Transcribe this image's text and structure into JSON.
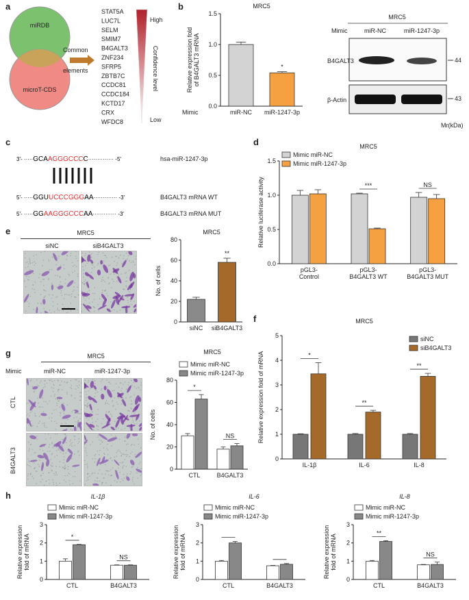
{
  "panels": {
    "a": "a",
    "b": "b",
    "c": "c",
    "d": "d",
    "e": "e",
    "f": "f",
    "g": "g",
    "h": "h"
  },
  "panel_a": {
    "circle_top": "miRDB",
    "circle_bottom": "microT-CDS",
    "arrow_label_1": "Common",
    "arrow_label_2": "elements",
    "genes": [
      "STAT5A",
      "LUC7L",
      "SELM",
      "SMIM7",
      "B4GALT3",
      "ZNF234",
      "SFRP5",
      "ZBTB7C",
      "CCDC81",
      "CCDC184",
      "KCTD17",
      "CRX",
      "WFDC8"
    ],
    "highlight_gene": "B4GALT3",
    "highlight_color": "#e03030",
    "scale_high": "High",
    "scale_mid": "Confidence level",
    "scale_low": "Low",
    "circle_top_color": "#7cc26e",
    "circle_bottom_color": "#f08a84"
  },
  "panel_b_blot": {
    "cell": "MRC5",
    "mimic_label": "Mimic",
    "lanes": [
      "miR-NC",
      "miR-1247-3p"
    ],
    "bands": [
      "B4GALT3",
      "β-Actin"
    ],
    "sizes": [
      "44",
      "43"
    ],
    "mr_label": "Mr(kDa)"
  },
  "panel_c": {
    "rows": [
      {
        "prefix": "3'-",
        "dots": "·····",
        "seq_black1": "GCA",
        "seq_red": "AGGGCCC",
        "seq_black2": "C",
        "tail_dots": "··············",
        "suffix": "-5'",
        "label": "hsa-miR-1247-3p"
      },
      {
        "prefix": "5'-",
        "dots": "·····",
        "seq_black1": "GGU",
        "seq_red": "UCCCGGG",
        "seq_black2": "AA",
        "tail_dots": "·············",
        "suffix": "-3'",
        "label": "B4GALT3 mRNA WT"
      },
      {
        "prefix": "5'-",
        "dots": "·····",
        "seq_black1": "GG",
        "seq_red": "AAGGGCCC",
        "seq_black2": "AA",
        "tail_dots": "·············",
        "suffix": "-3'",
        "label": "B4GALT3 mRNA MUT"
      }
    ]
  },
  "panel_e_images": {
    "cell": "MRC5",
    "lanes": [
      "siNC",
      "siB4GALT3"
    ]
  },
  "panel_g_images": {
    "cell": "MRC5",
    "mimic_label": "Mimic",
    "lanes": [
      "miR-NC",
      "miR-1247-3p"
    ],
    "rows": [
      "CTL",
      "B4GALT3"
    ]
  },
  "chart_data": [
    {
      "id": "b",
      "type": "bar",
      "title": "MRC5",
      "ylabel": "Relative expression fold of B4GALT3 mRNA",
      "xlabel_prefix": "Mimic",
      "categories": [
        "miR-NC",
        "miR-1247-3p"
      ],
      "values": [
        1.0,
        0.54
      ],
      "errors": [
        0.04,
        0.02
      ],
      "colors": [
        "#d3d3d3",
        "#f5a142"
      ],
      "yticks": [
        "0.0",
        "0.5",
        "1.0",
        "1.5"
      ],
      "ylim": [
        0,
        1.5
      ],
      "sig": [
        {
          "x": 1,
          "y": 0.6,
          "text": "*"
        }
      ]
    },
    {
      "id": "d",
      "type": "bar",
      "title": "MRC5",
      "ylabel": "Relative luciferase activity",
      "categories": [
        "pGL3-Control",
        "pGL3-B4GALT3 WT",
        "pGL3-B4GALT3 MUT"
      ],
      "series": [
        {
          "name": "Mimic miR-NC",
          "values": [
            1.0,
            1.02,
            0.97
          ],
          "errors": [
            0.07,
            0.01,
            0.07
          ],
          "color": "#d3d3d3"
        },
        {
          "name": "Mimic miR-1247-3p",
          "values": [
            1.02,
            0.51,
            0.95
          ],
          "errors": [
            0.06,
            0.01,
            0.06
          ],
          "color": "#f5a142"
        }
      ],
      "yticks": [
        "0.0",
        "0.5",
        "1.0",
        "1.5"
      ],
      "ylim": [
        0,
        1.5
      ],
      "sig": [
        {
          "group": 1,
          "text": "***"
        },
        {
          "group": 2,
          "text": "NS"
        }
      ]
    },
    {
      "id": "e",
      "type": "bar",
      "title": "MRC5",
      "ylabel": "No. of cells",
      "categories": [
        "siNC",
        "siB4GALT3"
      ],
      "values": [
        22,
        58
      ],
      "errors": [
        2,
        4
      ],
      "colors": [
        "#8a8a8a",
        "#a56a2a"
      ],
      "yticks": [
        "0",
        "20",
        "40",
        "60",
        "80"
      ],
      "ylim": [
        0,
        80
      ],
      "sig": [
        {
          "x": 1,
          "text": "**"
        }
      ]
    },
    {
      "id": "f",
      "type": "bar",
      "title": "MRC5",
      "ylabel": "Relative expression fold of mRNA",
      "categories": [
        "IL-1β",
        "IL-6",
        "IL-8"
      ],
      "series": [
        {
          "name": "siNC",
          "values": [
            1.0,
            1.0,
            1.0
          ],
          "errors": [
            0.02,
            0.03,
            0.03
          ],
          "color": "#777777"
        },
        {
          "name": "siB4GALT3",
          "values": [
            3.45,
            1.9,
            3.35
          ],
          "errors": [
            0.45,
            0.07,
            0.12
          ],
          "color": "#a56a2a"
        }
      ],
      "yticks": [
        "0",
        "1",
        "2",
        "3",
        "4",
        "5"
      ],
      "ylim": [
        0,
        5
      ],
      "sig": [
        {
          "group": 0,
          "text": "*"
        },
        {
          "group": 1,
          "text": "**"
        },
        {
          "group": 2,
          "text": "**"
        }
      ]
    },
    {
      "id": "g",
      "type": "bar",
      "title": "MRC5",
      "ylabel": "No. of cells",
      "categories": [
        "CTL",
        "B4GALT3"
      ],
      "series": [
        {
          "name": "Mimic miR-NC",
          "values": [
            30,
            18
          ],
          "errors": [
            2,
            2
          ],
          "color": "#ffffff"
        },
        {
          "name": "Mimic miR-1247-3p",
          "values": [
            63,
            21
          ],
          "errors": [
            4,
            2
          ],
          "color": "#888888"
        }
      ],
      "yticks": [
        "0",
        "20",
        "40",
        "60",
        "80"
      ],
      "ylim": [
        0,
        80
      ],
      "sig": [
        {
          "group": 0,
          "text": "*"
        },
        {
          "group": 1,
          "text": "NS"
        }
      ]
    },
    {
      "id": "h1",
      "type": "bar",
      "title": "IL-1β",
      "ylabel": "Relative expression fold of mRNA",
      "categories": [
        "CTL",
        "B4GALT3"
      ],
      "series": [
        {
          "name": "Mimic miR-NC",
          "values": [
            1.0,
            0.78
          ],
          "errors": [
            0.13,
            0.02
          ],
          "color": "#ffffff"
        },
        {
          "name": "Mimic miR-1247-3p",
          "values": [
            1.9,
            0.78
          ],
          "errors": [
            0.02,
            0.02
          ],
          "color": "#888888"
        }
      ],
      "yticks": [
        "0",
        "1",
        "2",
        "3"
      ],
      "ylim": [
        0,
        3
      ],
      "sig": [
        {
          "group": 0,
          "text": "*"
        },
        {
          "group": 1,
          "text": "NS"
        }
      ]
    },
    {
      "id": "h2",
      "type": "bar",
      "title": "IL-6",
      "ylabel": "Relative expression fold of mRNA",
      "categories": [
        "CTL",
        "B4GALT3"
      ],
      "series": [
        {
          "name": "Mimic miR-NC",
          "values": [
            1.0,
            0.75
          ],
          "errors": [
            0.04,
            0.02
          ],
          "color": "#ffffff"
        },
        {
          "name": "Mimic miR-1247-3p",
          "values": [
            2.0,
            0.83
          ],
          "errors": [
            0.08,
            0.04
          ],
          "color": "#888888"
        }
      ],
      "yticks": [
        "0",
        "1",
        "2",
        "3"
      ],
      "ylim": [
        0,
        3
      ],
      "sig": [
        {
          "group": 0,
          "text": ""
        },
        {
          "group": 1,
          "text": ""
        }
      ]
    },
    {
      "id": "h3",
      "type": "bar",
      "title": "IL-8",
      "ylabel": "Relative expression fold of mRNA",
      "categories": [
        "CTL",
        "B4GALT3"
      ],
      "series": [
        {
          "name": "Mimic miR-NC",
          "values": [
            1.0,
            0.8
          ],
          "errors": [
            0.04,
            0.02
          ],
          "color": "#ffffff"
        },
        {
          "name": "Mimic miR-1247-3p",
          "values": [
            2.08,
            0.82
          ],
          "errors": [
            0.04,
            0.13
          ],
          "color": "#888888"
        }
      ],
      "yticks": [
        "0",
        "1",
        "2",
        "3"
      ],
      "ylim": [
        0,
        3
      ],
      "sig": [
        {
          "group": 0,
          "text": "**"
        },
        {
          "group": 1,
          "text": "NS"
        }
      ]
    }
  ]
}
